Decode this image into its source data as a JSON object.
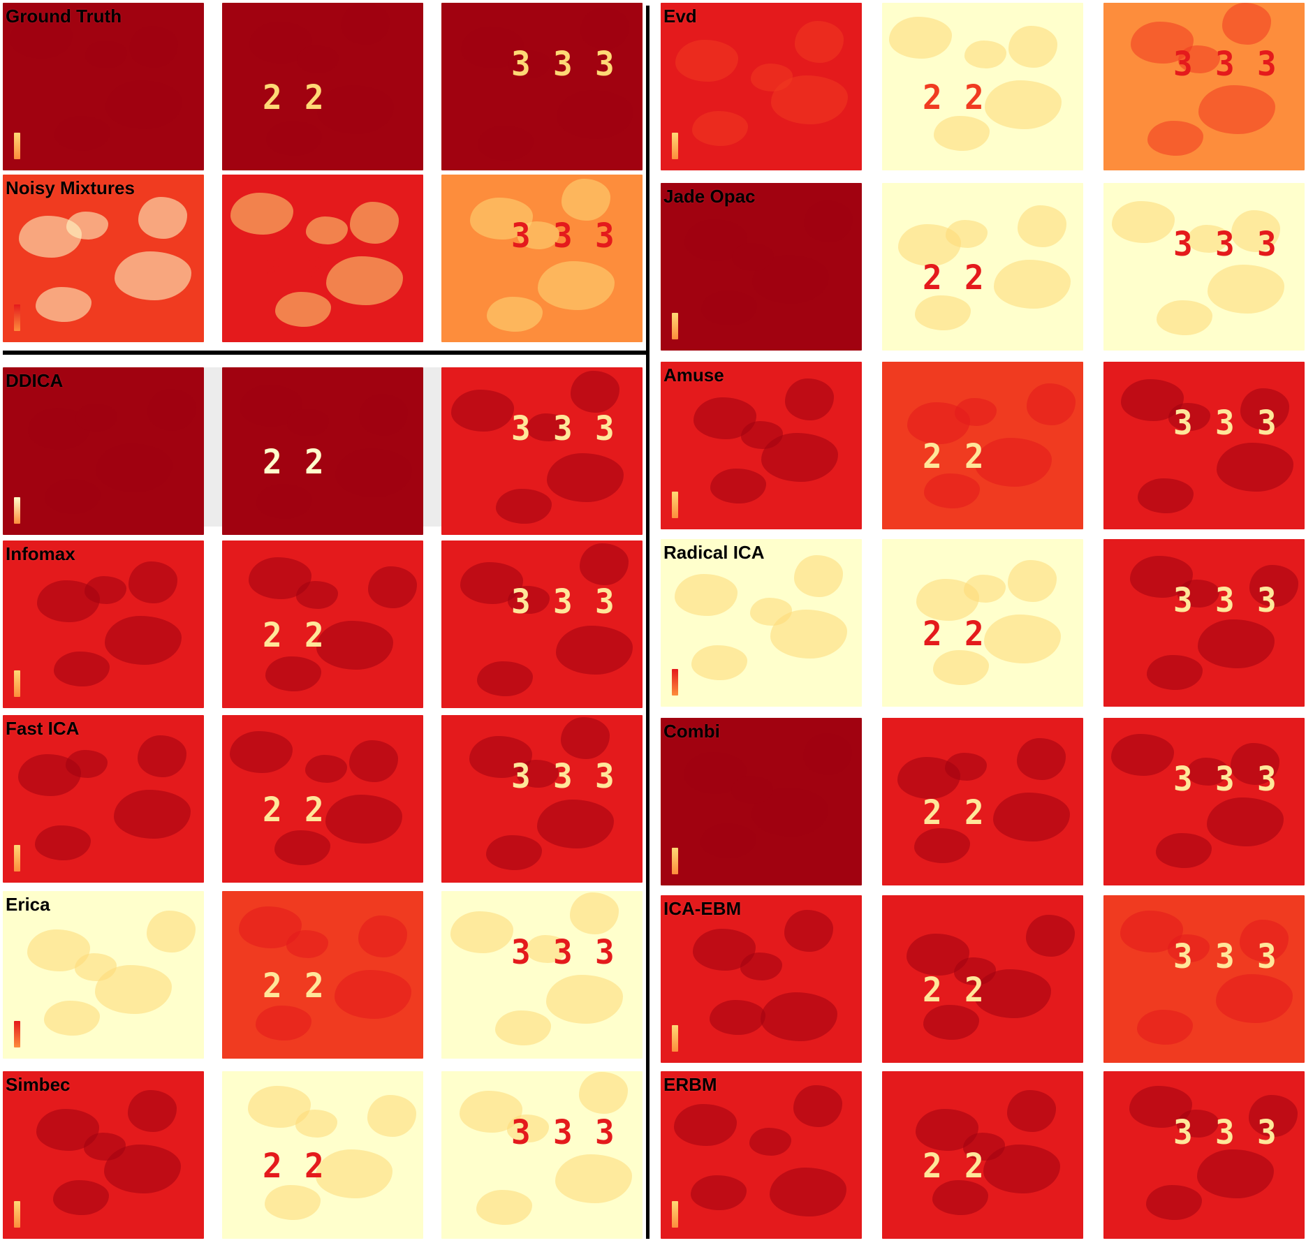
{
  "colors": {
    "dark": "#a10210",
    "red": "#e41a1c",
    "orange_red": "#f03b20",
    "orange": "#fd8d3c",
    "light": "#fed976",
    "pale": "#ffffcc",
    "glyph_light": "#ffe79a",
    "glyph_dark": "#b8000e",
    "divider": "#000000"
  },
  "glyphs": {
    "two": "2",
    "three": "3"
  },
  "methods": [
    {
      "key": "ground-truth",
      "label": "Ground Truth"
    },
    {
      "key": "noisy-mixtures",
      "label": "Noisy Mixtures"
    },
    {
      "key": "ddica",
      "label": "DDICA"
    },
    {
      "key": "infomax",
      "label": "Infomax"
    },
    {
      "key": "fast-ica",
      "label": "Fast ICA"
    },
    {
      "key": "erica",
      "label": "Erica"
    },
    {
      "key": "simbec",
      "label": "Simbec"
    },
    {
      "key": "evd",
      "label": "Evd"
    },
    {
      "key": "jade-opac",
      "label": "Jade Opac"
    },
    {
      "key": "amuse",
      "label": "Amuse"
    },
    {
      "key": "radical-ica",
      "label": "Radical ICA"
    },
    {
      "key": "combi",
      "label": "Combi"
    },
    {
      "key": "ica-ebm",
      "label": "ICA-EBM"
    },
    {
      "key": "erbm",
      "label": "ERBM"
    }
  ]
}
